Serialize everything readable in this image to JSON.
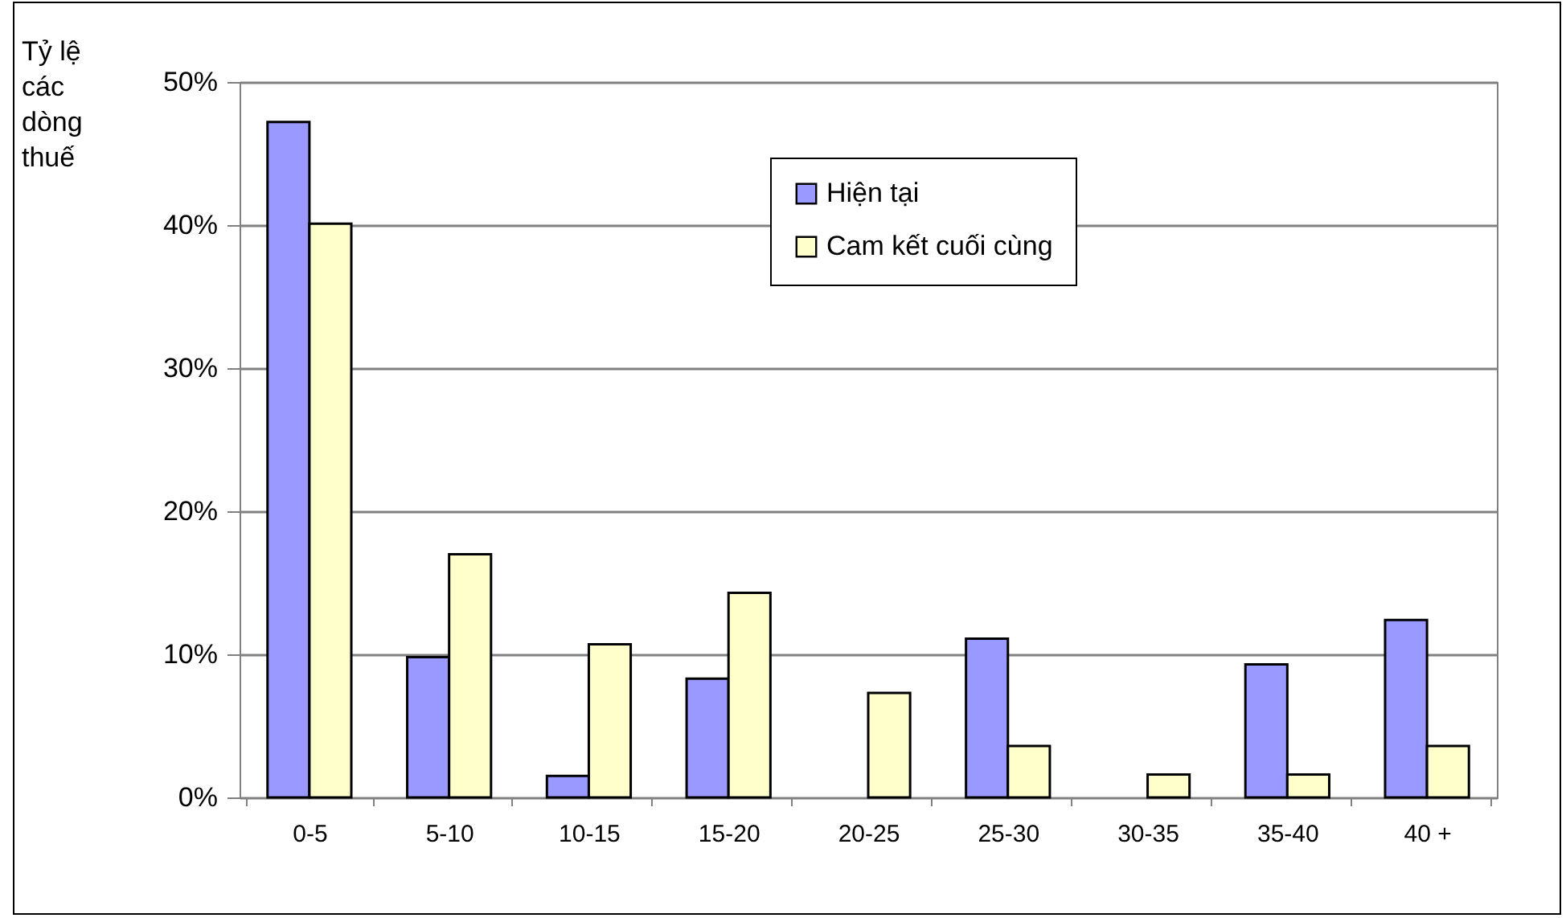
{
  "chart_data": {
    "type": "bar",
    "ylabel": "Tỷ lệ các dòng thuế",
    "categories": [
      "0-5",
      "5-10",
      "10-15",
      "15-20",
      "20-25",
      "25-30",
      "30-35",
      "35-40",
      "40 +"
    ],
    "series": [
      {
        "name": "Hiện tại",
        "color": "#9999ff",
        "values": [
          47.2,
          9.8,
          1.5,
          8.3,
          null,
          11.1,
          null,
          9.3,
          12.4
        ]
      },
      {
        "name": "Cam kết cuối cùng",
        "color": "#ffffcc",
        "values": [
          40.1,
          17.0,
          10.7,
          14.3,
          7.3,
          3.6,
          1.6,
          1.6,
          3.6
        ]
      }
    ],
    "ylim": [
      0,
      50
    ],
    "yticks": [
      {
        "value": 0,
        "label": "0%"
      },
      {
        "value": 10,
        "label": "10%"
      },
      {
        "value": 20,
        "label": "20%"
      },
      {
        "value": 30,
        "label": "30%"
      },
      {
        "value": 40,
        "label": "40%"
      },
      {
        "value": 50,
        "label": "50%"
      }
    ],
    "grid": "y",
    "legend": "top right"
  }
}
